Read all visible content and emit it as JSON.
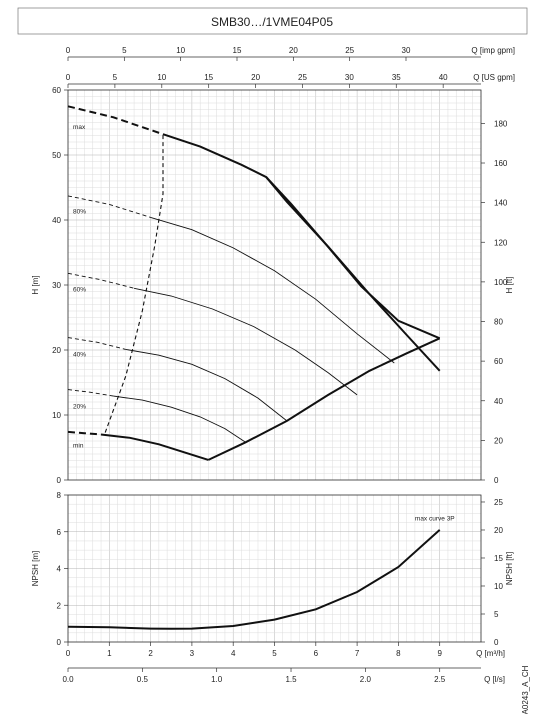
{
  "title": "SMB30…/1VME04P05",
  "code": "A0243_A_CH",
  "chart_data": [
    {
      "type": "line",
      "name": "performance",
      "x": {
        "label": "Q [m³/h]",
        "min": 0,
        "max": 10,
        "ticks": [
          0,
          1,
          2,
          3,
          4,
          5,
          6,
          7,
          8,
          9
        ]
      },
      "x_imp": {
        "label": "Q [imp gpm]",
        "ticks": [
          0,
          5,
          10,
          15,
          20,
          25,
          30
        ]
      },
      "x_us": {
        "label": "Q [US gpm]",
        "ticks": [
          0,
          5,
          10,
          15,
          20,
          25,
          30,
          35,
          40
        ]
      },
      "y": {
        "label": "H [m]",
        "min": 0,
        "max": 60,
        "ticks": [
          0,
          10,
          20,
          30,
          40,
          50,
          60
        ]
      },
      "y_right": {
        "label": "H [ft]",
        "ticks": [
          0,
          20,
          40,
          60,
          80,
          100,
          120,
          140,
          160,
          180
        ]
      },
      "grid": true,
      "series": [
        {
          "name": "max",
          "style": "thick",
          "points": [
            [
              2.3,
              53.2
            ],
            [
              3.2,
              51.3
            ],
            [
              4.2,
              48.5
            ],
            [
              4.8,
              46.6
            ],
            [
              5.3,
              42.8
            ],
            [
              6.3,
              35.9
            ],
            [
              7.3,
              28.6
            ],
            [
              8.2,
              22.3
            ],
            [
              9.0,
              16.8
            ],
            [
              9.0,
              16.8
            ],
            [
              9.0,
              16.8
            ]
          ]
        },
        {
          "name": "max-dashed",
          "style": "dashed-thick",
          "points": [
            [
              0,
              57.5
            ],
            [
              1.1,
              55.8
            ],
            [
              2.3,
              53.2
            ]
          ]
        },
        {
          "name": "80%",
          "style": "thin",
          "points": [
            [
              2.0,
              40.4
            ],
            [
              3.0,
              38.5
            ],
            [
              4.0,
              35.7
            ],
            [
              5.0,
              32.2
            ],
            [
              6.0,
              27.8
            ],
            [
              7.0,
              22.5
            ],
            [
              7.9,
              18.0
            ]
          ]
        },
        {
          "name": "80%-dashed",
          "style": "dashed-thin",
          "points": [
            [
              0,
              43.7
            ],
            [
              1.0,
              42.4
            ],
            [
              2.0,
              40.4
            ]
          ]
        },
        {
          "name": "60%",
          "style": "thin",
          "points": [
            [
              1.6,
              29.5
            ],
            [
              2.5,
              28.3
            ],
            [
              3.5,
              26.3
            ],
            [
              4.5,
              23.6
            ],
            [
              5.5,
              20.0
            ],
            [
              6.3,
              16.5
            ],
            [
              7.0,
              13.1
            ]
          ]
        },
        {
          "name": "60%-dashed",
          "style": "dashed-thin",
          "points": [
            [
              0,
              31.8
            ],
            [
              0.8,
              30.8
            ],
            [
              1.6,
              29.5
            ]
          ]
        },
        {
          "name": "40%",
          "style": "thin",
          "points": [
            [
              1.4,
              20.1
            ],
            [
              2.2,
              19.2
            ],
            [
              3.0,
              17.8
            ],
            [
              3.8,
              15.6
            ],
            [
              4.6,
              12.6
            ],
            [
              5.3,
              9.1
            ]
          ]
        },
        {
          "name": "40%-dashed",
          "style": "dashed-thin",
          "points": [
            [
              0,
              21.9
            ],
            [
              0.7,
              21.2
            ],
            [
              1.4,
              20.1
            ]
          ]
        },
        {
          "name": "20%",
          "style": "thin",
          "points": [
            [
              1.1,
              12.9
            ],
            [
              1.8,
              12.3
            ],
            [
              2.5,
              11.2
            ],
            [
              3.2,
              9.7
            ],
            [
              3.8,
              7.9
            ],
            [
              4.3,
              5.8
            ]
          ]
        },
        {
          "name": "20%-dashed",
          "style": "dashed-thin",
          "points": [
            [
              0,
              13.9
            ],
            [
              0.55,
              13.5
            ],
            [
              1.1,
              12.9
            ]
          ]
        },
        {
          "name": "min",
          "style": "thick",
          "points": [
            [
              0.8,
              7.0
            ],
            [
              1.5,
              6.5
            ],
            [
              2.2,
              5.5
            ],
            [
              2.9,
              4.1
            ],
            [
              3.4,
              3.1
            ]
          ]
        },
        {
          "name": "min-dashed",
          "style": "dashed-thick",
          "points": [
            [
              0,
              7.4
            ],
            [
              0.4,
              7.2
            ],
            [
              0.8,
              7.0
            ]
          ]
        },
        {
          "name": "system-curve",
          "style": "thick",
          "points": [
            [
              3.4,
              3.1
            ],
            [
              4.3,
              5.8
            ],
            [
              5.3,
              9.1
            ],
            [
              6.3,
              13.1
            ],
            [
              7.3,
              16.8
            ],
            [
              8.2,
              19.5
            ],
            [
              9.0,
              21.8
            ]
          ]
        },
        {
          "name": "max-right-branch",
          "style": "thick",
          "points": [
            [
              4.8,
              46.6
            ],
            [
              5.4,
              42.5
            ],
            [
              6.2,
              36.6
            ],
            [
              7.1,
              29.8
            ],
            [
              8.0,
              24.5
            ],
            [
              9.0,
              21.8
            ]
          ]
        },
        {
          "name": "boundary-dashed",
          "style": "dashed-mid",
          "points": [
            [
              0.9,
              7.3
            ],
            [
              1.4,
              16.0
            ],
            [
              1.8,
              26.0
            ],
            [
              2.1,
              36.0
            ],
            [
              2.3,
              44.0
            ],
            [
              2.3,
              53.2
            ]
          ]
        }
      ],
      "curve_labels": [
        {
          "text": "max",
          "y": 54.5
        },
        {
          "text": "80%",
          "y": 41.5
        },
        {
          "text": "60%",
          "y": 29.5
        },
        {
          "text": "40%",
          "y": 19.5
        },
        {
          "text": "20%",
          "y": 11.5
        },
        {
          "text": "min",
          "y": 5.5
        }
      ]
    },
    {
      "type": "line",
      "name": "npsh",
      "x": {
        "label": "Q [m³/h]",
        "min": 0,
        "max": 10,
        "ticks": [
          0,
          1,
          2,
          3,
          4,
          5,
          6,
          7,
          8,
          9
        ]
      },
      "x_ls": {
        "label": "Q [l/s]",
        "ticks": [
          "0.0",
          "0.5",
          "1.0",
          "1.5",
          "2.0",
          "2.5"
        ]
      },
      "y": {
        "label": "NPSH [m]",
        "min": 0,
        "max": 8,
        "ticks": [
          0,
          2,
          4,
          6,
          8
        ]
      },
      "y_right": {
        "label": "NPSH [ft]",
        "ticks": [
          0,
          5,
          10,
          15,
          20,
          25
        ]
      },
      "grid": true,
      "series": [
        {
          "name": "max curve 3P",
          "points": [
            [
              0,
              0.83
            ],
            [
              1,
              0.8
            ],
            [
              2,
              0.73
            ],
            [
              2.5,
              0.72
            ],
            [
              3,
              0.73
            ],
            [
              4,
              0.87
            ],
            [
              5,
              1.22
            ],
            [
              6,
              1.78
            ],
            [
              7,
              2.72
            ],
            [
              8,
              4.08
            ],
            [
              9,
              6.1
            ]
          ]
        }
      ],
      "annotation": "max curve 3P"
    }
  ]
}
